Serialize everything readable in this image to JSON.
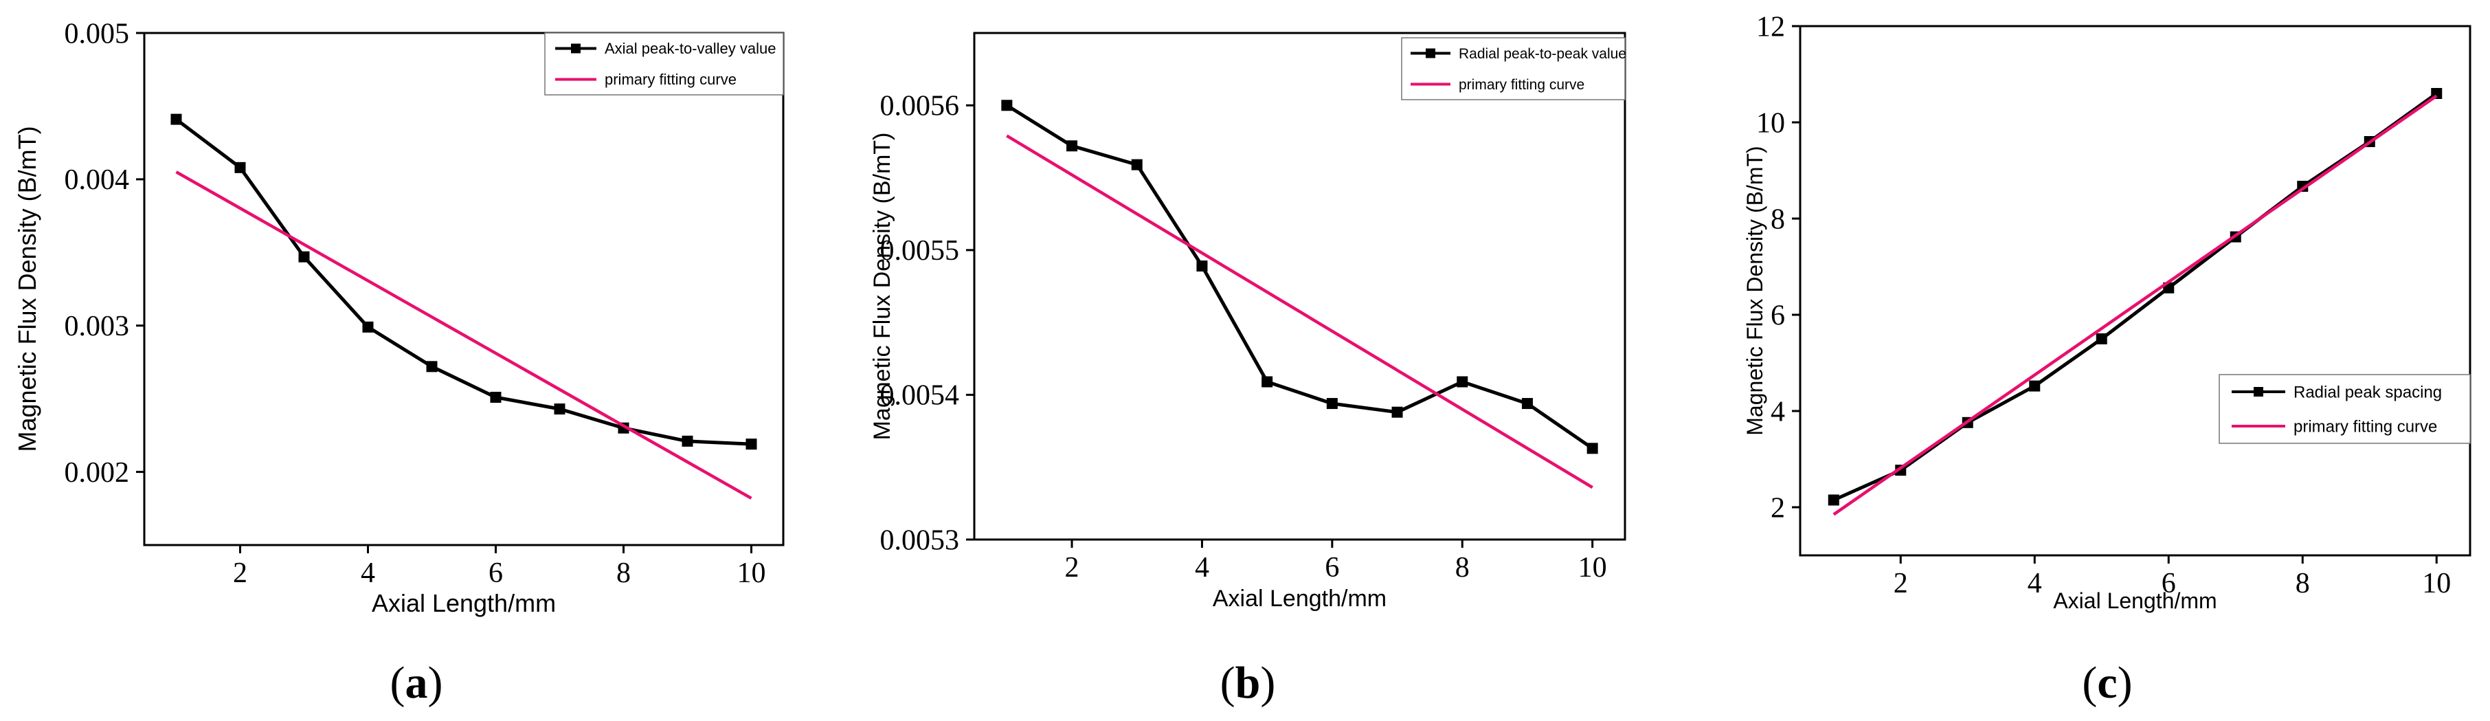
{
  "colors": {
    "data_series": "#000000",
    "fit_line": "#e8106e",
    "background": "#ffffff"
  },
  "chart_data": [
    {
      "panel_label": "a",
      "type": "line",
      "xlabel": "Axial Length/mm",
      "ylabel": "Magnetic Flux Density (B/mT)",
      "xlim": [
        0.5,
        10.5
      ],
      "ylim": [
        0.0015,
        0.005
      ],
      "xticks": [
        2,
        4,
        6,
        8,
        10
      ],
      "xtick_labels": [
        "2",
        "4",
        "6",
        "8",
        "10"
      ],
      "yticks": [
        0.002,
        0.003,
        0.004,
        0.005
      ],
      "ytick_labels": [
        "0.002",
        "0.003",
        "0.004",
        "0.005"
      ],
      "legend_position": "top-right",
      "series": [
        {
          "name": "Axial peak-to-valley value",
          "style": "line-square",
          "x": [
            1,
            2,
            3,
            4,
            5,
            6,
            7,
            8,
            9,
            10
          ],
          "values": [
            0.00441,
            0.00408,
            0.00347,
            0.00299,
            0.00272,
            0.00251,
            0.00243,
            0.0023,
            0.00221,
            0.00219
          ]
        },
        {
          "name": "primary fitting curve",
          "style": "line",
          "x": [
            1,
            10
          ],
          "values": [
            0.00405,
            0.00182
          ]
        }
      ]
    },
    {
      "panel_label": "b",
      "type": "line",
      "xlabel": "Axial Length/mm",
      "ylabel": "Magnetic Flux Density (B/mT)",
      "xlim": [
        0.5,
        10.5
      ],
      "ylim": [
        0.0053,
        0.00565
      ],
      "xticks": [
        2,
        4,
        6,
        8,
        10
      ],
      "xtick_labels": [
        "2",
        "4",
        "6",
        "8",
        "10"
      ],
      "yticks": [
        0.0053,
        0.0054,
        0.0055,
        0.0056
      ],
      "ytick_labels": [
        "0.0053",
        "0.0054",
        "0.0055",
        "0.0056"
      ],
      "legend_position": "top-right",
      "series": [
        {
          "name": "Radial peak-to-peak value",
          "style": "line-square",
          "x": [
            1,
            2,
            3,
            4,
            5,
            6,
            7,
            8,
            9,
            10
          ],
          "values": [
            0.0056,
            0.005572,
            0.005559,
            0.005489,
            0.005409,
            0.005394,
            0.005388,
            0.005409,
            0.005394,
            0.005363
          ]
        },
        {
          "name": "primary fitting curve",
          "style": "line",
          "x": [
            1,
            10
          ],
          "values": [
            0.005579,
            0.005336
          ]
        }
      ]
    },
    {
      "panel_label": "c",
      "type": "line",
      "xlabel": "Axial Length/mm",
      "ylabel": "Magnetic Flux Density (B/mT)",
      "xlim": [
        0.5,
        10.5
      ],
      "ylim": [
        1,
        12
      ],
      "xticks": [
        2,
        4,
        6,
        8,
        10
      ],
      "xtick_labels": [
        "2",
        "4",
        "6",
        "8",
        "10"
      ],
      "yticks": [
        2,
        4,
        6,
        8,
        10,
        12
      ],
      "ytick_labels": [
        "2",
        "4",
        "6",
        "8",
        "10",
        "12"
      ],
      "legend_position": "right",
      "series": [
        {
          "name": "Radial peak spacing",
          "style": "line-square",
          "x": [
            1,
            2,
            3,
            4,
            5,
            6,
            7,
            8,
            9,
            10
          ],
          "values": [
            2.15,
            2.77,
            3.76,
            4.52,
            5.5,
            6.56,
            7.62,
            8.67,
            9.6,
            10.6
          ]
        },
        {
          "name": "primary fitting curve",
          "style": "line",
          "x": [
            1,
            10
          ],
          "values": [
            1.85,
            10.55
          ]
        }
      ]
    }
  ]
}
